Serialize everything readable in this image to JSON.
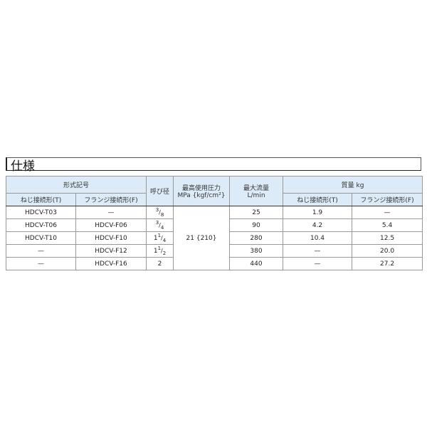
{
  "title": "仕様",
  "headers": {
    "model": "形式記号",
    "model_t": "ねじ接続形(T)",
    "model_f": "フランジ接続形(F)",
    "size": "呼び径",
    "pressure_l1": "最高使用圧力",
    "pressure_l2": "MPa {kgf/cm²}",
    "flow_l1": "最大流量",
    "flow_l2": "L/min",
    "mass": "質量 kg",
    "mass_t": "ねじ接続形(T)",
    "mass_f": "フランジ接続形(F)"
  },
  "pressure_value": "21 {210}",
  "rows": [
    {
      "t": "HDCV-T03",
      "f": "—",
      "size_whole": "",
      "size_num": "3",
      "size_den": "8",
      "flow": "25",
      "mass_t": "1.9",
      "mass_f": "—"
    },
    {
      "t": "HDCV-T06",
      "f": "HDCV-F06",
      "size_whole": "",
      "size_num": "3",
      "size_den": "4",
      "flow": "90",
      "mass_t": "4.2",
      "mass_f": "5.4"
    },
    {
      "t": "HDCV-T10",
      "f": "HDCV-F10",
      "size_whole": "1",
      "size_num": "1",
      "size_den": "4",
      "flow": "280",
      "mass_t": "10.4",
      "mass_f": "12.5"
    },
    {
      "t": "—",
      "f": "HDCV-F12",
      "size_whole": "1",
      "size_num": "1",
      "size_den": "2",
      "flow": "380",
      "mass_t": "—",
      "mass_f": "20.0"
    },
    {
      "t": "—",
      "f": "HDCV-F16",
      "size_whole": "2",
      "size_num": "",
      "size_den": "",
      "flow": "440",
      "mass_t": "—",
      "mass_f": "27.2"
    }
  ],
  "colors": {
    "header_bg": "#dcebf7"
  }
}
